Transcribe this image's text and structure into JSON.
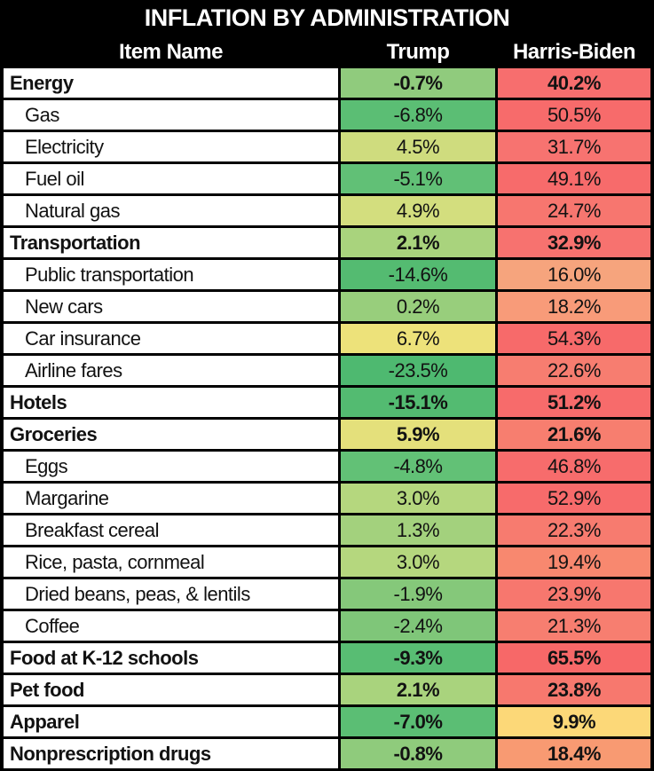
{
  "title": "INFLATION BY ADMINISTRATION",
  "header": {
    "item_col": "Item Name",
    "trump_col": "Trump",
    "biden_col": "Harris-Biden"
  },
  "palette": {
    "background": "#000000",
    "header_text": "#ffffff",
    "row_background": "#ffffff",
    "body_text": "#121212",
    "green_min": "#4EB970",
    "yellow_mid": "#EDE27A",
    "red_max": "#F76868"
  },
  "table": {
    "rows": [
      {
        "item": "Energy",
        "trump": "-0.7%",
        "biden": "40.2%",
        "bold": true,
        "indent": false,
        "trump_color": "#90CB7D",
        "biden_color": "#F76E6E"
      },
      {
        "item": "Gas",
        "trump": "-6.8%",
        "biden": "50.5%",
        "bold": false,
        "indent": true,
        "trump_color": "#5BBE74",
        "biden_color": "#F76B6B"
      },
      {
        "item": "Electricity",
        "trump": "4.5%",
        "biden": "31.7%",
        "bold": false,
        "indent": true,
        "trump_color": "#CFDC7E",
        "biden_color": "#F77370"
      },
      {
        "item": "Fuel oil",
        "trump": "-5.1%",
        "biden": "49.1%",
        "bold": false,
        "indent": true,
        "trump_color": "#61C076",
        "biden_color": "#F76B6B"
      },
      {
        "item": "Natural gas",
        "trump": "4.9%",
        "biden": "24.7%",
        "bold": false,
        "indent": true,
        "trump_color": "#D3DE7E",
        "biden_color": "#F7766F"
      },
      {
        "item": "Transportation",
        "trump": "2.1%",
        "biden": "32.9%",
        "bold": true,
        "indent": false,
        "trump_color": "#A9D37D",
        "biden_color": "#F7726F"
      },
      {
        "item": "Public transportation",
        "trump": "-14.6%",
        "biden": "16.0%",
        "bold": false,
        "indent": true,
        "trump_color": "#54BB71",
        "biden_color": "#F6A47D"
      },
      {
        "item": "New cars",
        "trump": "0.2%",
        "biden": "18.2%",
        "bold": false,
        "indent": true,
        "trump_color": "#98CE7C",
        "biden_color": "#F89B79"
      },
      {
        "item": "Car insurance",
        "trump": "6.7%",
        "biden": "54.3%",
        "bold": false,
        "indent": true,
        "trump_color": "#EDE27A",
        "biden_color": "#F76A6A"
      },
      {
        "item": "Airline fares",
        "trump": "-23.5%",
        "biden": "22.6%",
        "bold": false,
        "indent": true,
        "trump_color": "#4EB970",
        "biden_color": "#F77D70"
      },
      {
        "item": "Hotels",
        "trump": "-15.1%",
        "biden": "51.2%",
        "bold": true,
        "indent": false,
        "trump_color": "#53BB71",
        "biden_color": "#F76B6B"
      },
      {
        "item": "Groceries",
        "trump": "5.9%",
        "biden": "21.6%",
        "bold": true,
        "indent": false,
        "trump_color": "#E4E07B",
        "biden_color": "#F77E6F"
      },
      {
        "item": "Eggs",
        "trump": "-4.8%",
        "biden": "46.8%",
        "bold": false,
        "indent": true,
        "trump_color": "#62C176",
        "biden_color": "#F76C6C"
      },
      {
        "item": "Margarine",
        "trump": "3.0%",
        "biden": "52.9%",
        "bold": false,
        "indent": true,
        "trump_color": "#B5D77E",
        "biden_color": "#F76B6B"
      },
      {
        "item": "Breakfast cereal",
        "trump": "1.3%",
        "biden": "22.3%",
        "bold": false,
        "indent": true,
        "trump_color": "#A3D17D",
        "biden_color": "#F77B6F"
      },
      {
        "item": "Rice, pasta, cornmeal",
        "trump": "3.0%",
        "biden": "19.4%",
        "bold": false,
        "indent": true,
        "trump_color": "#B5D77E",
        "biden_color": "#F8886F"
      },
      {
        "item": "Dried beans, peas, & lentils",
        "trump": "-1.9%",
        "biden": "23.9%",
        "bold": false,
        "indent": true,
        "trump_color": "#85C87A",
        "biden_color": "#F7776E"
      },
      {
        "item": "Coffee",
        "trump": "-2.4%",
        "biden": "21.3%",
        "bold": false,
        "indent": true,
        "trump_color": "#7FC679",
        "biden_color": "#F77E70"
      },
      {
        "item": "Food at K-12 schools",
        "trump": "-9.3%",
        "biden": "65.5%",
        "bold": true,
        "indent": false,
        "trump_color": "#58BD73",
        "biden_color": "#F76868"
      },
      {
        "item": "Pet food",
        "trump": "2.1%",
        "biden": "23.8%",
        "bold": true,
        "indent": false,
        "trump_color": "#A9D37D",
        "biden_color": "#F7786E"
      },
      {
        "item": "Apparel",
        "trump": "-7.0%",
        "biden": "9.9%",
        "bold": true,
        "indent": false,
        "trump_color": "#5BBE74",
        "biden_color": "#FCD878"
      },
      {
        "item": "Nonprescription drugs",
        "trump": "-0.8%",
        "biden": "18.4%",
        "bold": true,
        "indent": false,
        "trump_color": "#8FCB7C",
        "biden_color": "#F89A72"
      }
    ]
  },
  "chart_data": {
    "type": "table",
    "title": "INFLATION BY ADMINISTRATION",
    "columns": [
      "Item Name",
      "Trump",
      "Harris-Biden"
    ],
    "categories": [
      "Energy",
      "Gas",
      "Electricity",
      "Fuel oil",
      "Natural gas",
      "Transportation",
      "Public transportation",
      "New cars",
      "Car insurance",
      "Airline fares",
      "Hotels",
      "Groceries",
      "Eggs",
      "Margarine",
      "Breakfast cereal",
      "Rice, pasta, cornmeal",
      "Dried beans, peas, & lentils",
      "Coffee",
      "Food at K-12 schools",
      "Pet food",
      "Apparel",
      "Nonprescription drugs"
    ],
    "series": [
      {
        "name": "Trump",
        "values": [
          -0.7,
          -6.8,
          4.5,
          -5.1,
          4.9,
          2.1,
          -14.6,
          0.2,
          6.7,
          -23.5,
          -15.1,
          5.9,
          -4.8,
          3.0,
          1.3,
          3.0,
          -1.9,
          -2.4,
          -9.3,
          2.1,
          -7.0,
          -0.8
        ]
      },
      {
        "name": "Harris-Biden",
        "values": [
          40.2,
          50.5,
          31.7,
          49.1,
          24.7,
          32.9,
          16.0,
          18.2,
          54.3,
          22.6,
          51.2,
          21.6,
          46.8,
          52.9,
          22.3,
          19.4,
          23.9,
          21.3,
          65.5,
          23.8,
          9.9,
          18.4
        ]
      }
    ],
    "value_unit": "%",
    "cell_color_coding": "green = deflation/low, yellow = mid, red = high inflation",
    "category_rows_bold": [
      "Energy",
      "Transportation",
      "Hotels",
      "Groceries",
      "Food at K-12 schools",
      "Pet food",
      "Apparel",
      "Nonprescription drugs"
    ]
  }
}
